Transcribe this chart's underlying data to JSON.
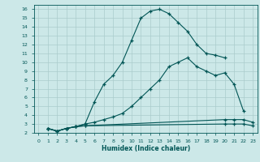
{
  "bg_color": "#cce8e8",
  "grid_color": "#aacccc",
  "line_color": "#005555",
  "marker": "+",
  "xlabel": "Humidex (Indice chaleur)",
  "xlim": [
    -0.5,
    23.5
  ],
  "ylim": [
    2,
    16.5
  ],
  "yticks": [
    2,
    3,
    4,
    5,
    6,
    7,
    8,
    9,
    10,
    11,
    12,
    13,
    14,
    15,
    16
  ],
  "xticks": [
    0,
    1,
    2,
    3,
    4,
    5,
    6,
    7,
    8,
    9,
    10,
    11,
    12,
    13,
    14,
    15,
    16,
    17,
    18,
    19,
    20,
    21,
    22,
    23
  ],
  "curves": [
    {
      "x": [
        1,
        2,
        3,
        4,
        5,
        6,
        7,
        8,
        9,
        10,
        11,
        12,
        13,
        14,
        15,
        16,
        17,
        18,
        19,
        20
      ],
      "y": [
        2.5,
        2.2,
        2.5,
        2.7,
        3.0,
        5.5,
        7.5,
        8.5,
        10.0,
        12.5,
        15.0,
        15.8,
        16.0,
        15.5,
        14.5,
        13.5,
        12.0,
        11.0,
        10.8,
        10.5
      ]
    },
    {
      "x": [
        1,
        2,
        3,
        4,
        5,
        6,
        7,
        8,
        9,
        10,
        11,
        12,
        13,
        14,
        15,
        16,
        17,
        18,
        19,
        20,
        21,
        22
      ],
      "y": [
        2.5,
        2.2,
        2.5,
        2.7,
        3.0,
        3.2,
        3.5,
        3.8,
        4.2,
        5.0,
        6.0,
        7.0,
        8.0,
        9.5,
        10.0,
        10.5,
        9.5,
        9.0,
        8.5,
        8.8,
        7.5,
        4.5
      ]
    },
    {
      "x": [
        1,
        2,
        3,
        4,
        5,
        20,
        21,
        22,
        23
      ],
      "y": [
        2.5,
        2.2,
        2.5,
        2.7,
        2.8,
        3.5,
        3.5,
        3.5,
        3.2
      ]
    },
    {
      "x": [
        1,
        2,
        3,
        4,
        5,
        20,
        21,
        22,
        23
      ],
      "y": [
        2.5,
        2.2,
        2.5,
        2.7,
        2.8,
        3.0,
        3.0,
        3.0,
        2.8
      ]
    }
  ]
}
